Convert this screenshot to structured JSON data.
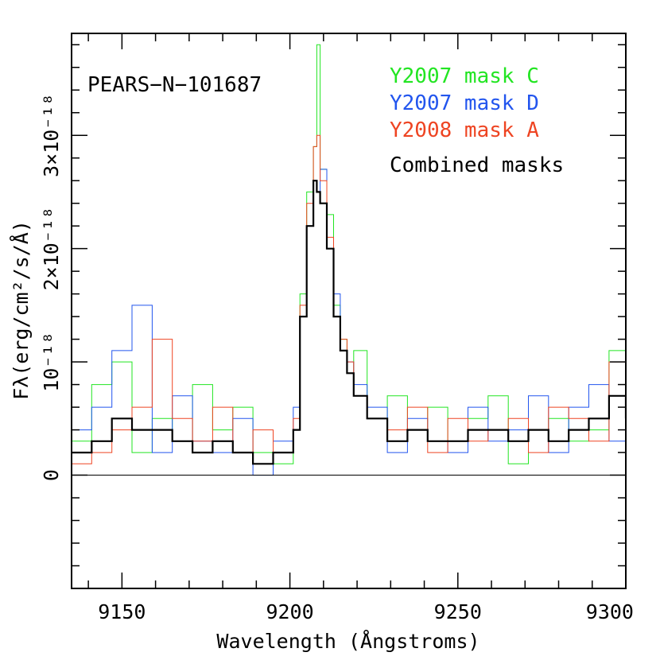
{
  "chart_data": {
    "type": "line",
    "subtype": "step",
    "object_label": "PEARS−N−101687",
    "xlabel": "Wavelength (Ångstroms)",
    "ylabel": "Fλ(erg/cm²/s/Å)",
    "xlim": [
      9135,
      9300
    ],
    "ylim": [
      -1e-18,
      3.9e-18
    ],
    "x_ticks": [
      {
        "value": 9150,
        "label": "9150"
      },
      {
        "value": 9200,
        "label": "9200"
      },
      {
        "value": 9250,
        "label": "9250"
      },
      {
        "value": 9300,
        "label": "9300"
      }
    ],
    "y_ticks": [
      {
        "value": 0,
        "label": "0"
      },
      {
        "value": 1e-18,
        "label": "10⁻¹⁸"
      },
      {
        "value": 2e-18,
        "label": "2×10⁻¹⁸"
      },
      {
        "value": 3e-18,
        "label": "3×10⁻¹⁸"
      }
    ],
    "zero_line": true,
    "legend": "top-right",
    "series": [
      {
        "name": "Y2007 mask C",
        "label_mask": "mask C",
        "label_year": "Y2007",
        "color": "#22e522",
        "x": [
          9135,
          9141,
          9147,
          9153,
          9159,
          9165,
          9171,
          9177,
          9183,
          9189,
          9195,
          9201,
          9203,
          9205,
          9207,
          9208,
          9209,
          9211,
          9213,
          9215,
          9217,
          9219,
          9223,
          9229,
          9235,
          9241,
          9247,
          9253,
          9259,
          9265,
          9271,
          9277,
          9283,
          9289,
          9295,
          9300
        ],
        "values": [
          3e-19,
          8e-19,
          1e-18,
          2e-19,
          5e-19,
          3e-19,
          8e-19,
          4e-19,
          6e-19,
          2e-19,
          1e-19,
          4e-19,
          1.6e-18,
          2.5e-18,
          2.9e-18,
          3.8e-18,
          2.7e-18,
          2.3e-18,
          1.5e-18,
          1.2e-18,
          9e-19,
          1.1e-18,
          5e-19,
          7e-19,
          4e-19,
          6e-19,
          3e-19,
          5e-19,
          7e-19,
          1e-19,
          4e-19,
          5e-19,
          3e-19,
          4e-19,
          1.1e-18,
          2e-19
        ]
      },
      {
        "name": "Y2007 mask D",
        "label_mask": "mask D",
        "label_year": "Y2007",
        "color": "#2255ee",
        "x": [
          9135,
          9141,
          9147,
          9153,
          9159,
          9165,
          9171,
          9177,
          9183,
          9189,
          9195,
          9201,
          9203,
          9205,
          9207,
          9208,
          9209,
          9211,
          9213,
          9215,
          9217,
          9219,
          9223,
          9229,
          9235,
          9241,
          9247,
          9253,
          9259,
          9265,
          9271,
          9277,
          9283,
          9289,
          9295,
          9300
        ],
        "values": [
          4e-19,
          6e-19,
          1.1e-18,
          1.5e-18,
          2e-19,
          7e-19,
          3e-19,
          2e-19,
          5e-19,
          0.0,
          3e-19,
          6e-19,
          1.4e-18,
          2.2e-18,
          2.6e-18,
          2.5e-18,
          2.7e-18,
          2e-18,
          1.6e-18,
          1.1e-18,
          1e-18,
          8e-19,
          6e-19,
          2e-19,
          5e-19,
          3e-19,
          2e-19,
          6e-19,
          3e-19,
          4e-19,
          7e-19,
          2e-19,
          6e-19,
          8e-19,
          3e-19,
          1.2e-18
        ]
      },
      {
        "name": "Y2008 mask A",
        "label_mask": "mask A",
        "label_year": "Y2008",
        "color": "#ee4422",
        "x": [
          9135,
          9141,
          9147,
          9153,
          9159,
          9165,
          9171,
          9177,
          9183,
          9189,
          9195,
          9201,
          9203,
          9205,
          9207,
          9208,
          9209,
          9211,
          9213,
          9215,
          9217,
          9219,
          9223,
          9229,
          9235,
          9241,
          9247,
          9253,
          9259,
          9265,
          9271,
          9277,
          9283,
          9289,
          9295,
          9300
        ],
        "values": [
          1e-19,
          2e-19,
          4e-19,
          6e-19,
          1.2e-18,
          5e-19,
          3e-19,
          6e-19,
          2e-19,
          4e-19,
          2e-19,
          5e-19,
          1.5e-18,
          2.4e-18,
          2.9e-18,
          3e-18,
          2.6e-18,
          2.1e-18,
          1.4e-18,
          1.2e-18,
          1e-18,
          7e-19,
          5e-19,
          4e-19,
          6e-19,
          2e-19,
          5e-19,
          3e-19,
          4e-19,
          5e-19,
          2e-19,
          6e-19,
          5e-19,
          3e-19,
          1e-18,
          7e-19
        ]
      },
      {
        "name": "Combined masks",
        "label_mask": "",
        "label_year": "",
        "color": "#000000",
        "x": [
          9135,
          9141,
          9147,
          9153,
          9159,
          9165,
          9171,
          9177,
          9183,
          9189,
          9195,
          9201,
          9203,
          9205,
          9207,
          9208,
          9209,
          9211,
          9213,
          9215,
          9217,
          9219,
          9223,
          9229,
          9235,
          9241,
          9247,
          9253,
          9259,
          9265,
          9271,
          9277,
          9283,
          9289,
          9295,
          9300
        ],
        "values": [
          2e-19,
          3e-19,
          5e-19,
          4e-19,
          4e-19,
          3e-19,
          2e-19,
          3e-19,
          2e-19,
          1e-19,
          2e-19,
          4e-19,
          1.4e-18,
          2.2e-18,
          2.6e-18,
          2.5e-18,
          2.4e-18,
          2e-18,
          1.4e-18,
          1.1e-18,
          9e-19,
          7e-19,
          5e-19,
          3e-19,
          4e-19,
          3e-19,
          3e-19,
          4e-19,
          4e-19,
          3e-19,
          4e-19,
          3e-19,
          4e-19,
          5e-19,
          7e-19,
          5e-19
        ]
      }
    ]
  }
}
